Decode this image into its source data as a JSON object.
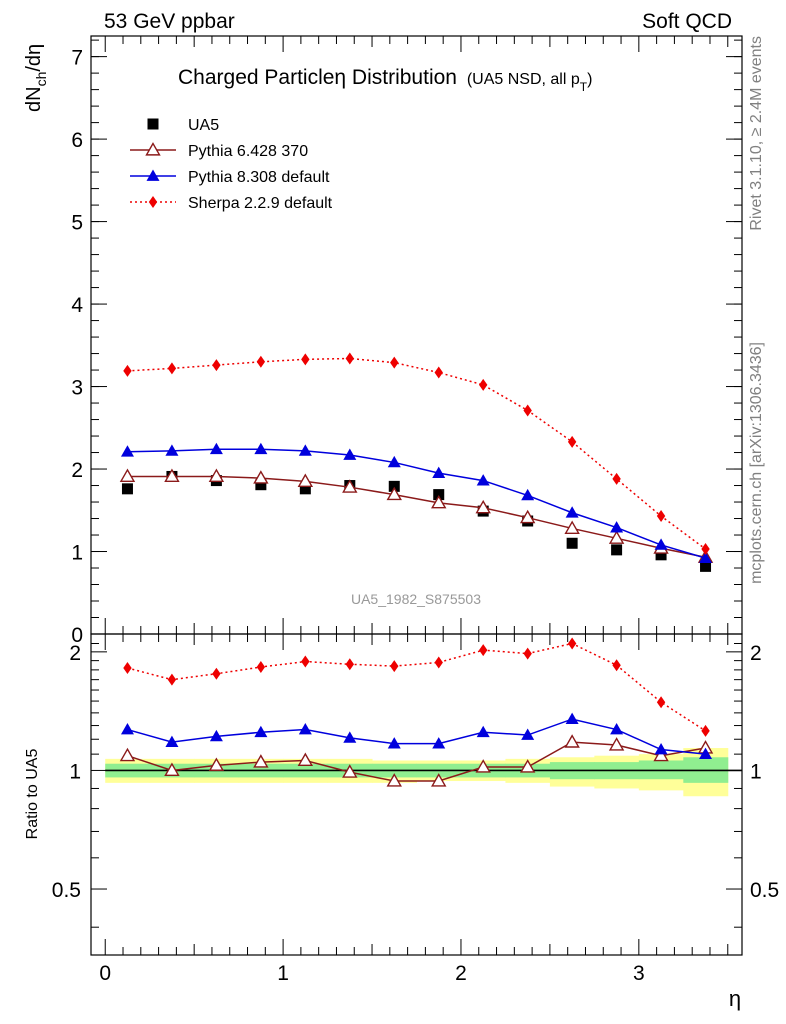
{
  "header": {
    "left": "53 GeV ppbar",
    "right": "Soft QCD"
  },
  "side_text": {
    "upper": "Rivet 3.1.10, ≥ 2.4M events",
    "lower": "mcplots.cern.ch [arXiv:1306.3436]"
  },
  "chart_data": [
    {
      "type": "scatter",
      "title": "Charged Particleη Distribution",
      "subtitle_main": "(UA5 NSD, all p",
      "subtitle_sub": "T",
      "subtitle_close": ")",
      "ylabel_main": "dN",
      "ylabel_sub": "ch",
      "ylabel_tail": "/dη",
      "watermark": "UA5_1982_S875503",
      "xlim": [
        -0.08,
        3.58
      ],
      "ylim": [
        0,
        7.25
      ],
      "yticks": [
        0,
        1,
        2,
        3,
        4,
        5,
        6,
        7
      ],
      "grid": false,
      "legend_position": "top-left",
      "legend": [
        {
          "label": "UA5",
          "marker": "square",
          "color": "#000000",
          "line": "none"
        },
        {
          "label": "Pythia 6.428 370",
          "marker": "triangle-open",
          "color": "#8b1a1a",
          "line": "solid"
        },
        {
          "label": "Pythia 8.308 default",
          "marker": "triangle",
          "color": "#0000dd",
          "line": "solid"
        },
        {
          "label": "Sherpa 2.2.9 default",
          "marker": "diamond",
          "color": "#ee0000",
          "line": "dotted"
        }
      ],
      "x": [
        0.125,
        0.375,
        0.625,
        0.875,
        1.125,
        1.375,
        1.625,
        1.875,
        2.125,
        2.375,
        2.625,
        2.875,
        3.125,
        3.375
      ],
      "series": [
        {
          "name": "UA5",
          "values": [
            1.76,
            1.91,
            1.86,
            1.81,
            1.76,
            1.8,
            1.79,
            1.69,
            1.49,
            1.37,
            1.1,
            1.02,
            0.96,
            0.82
          ]
        },
        {
          "name": "Pythia 6.428 370",
          "values": [
            1.91,
            1.91,
            1.91,
            1.89,
            1.85,
            1.78,
            1.69,
            1.59,
            1.53,
            1.41,
            1.28,
            1.16,
            1.04,
            0.93
          ]
        },
        {
          "name": "Pythia 8.308 default",
          "values": [
            2.21,
            2.22,
            2.24,
            2.24,
            2.22,
            2.17,
            2.08,
            1.95,
            1.86,
            1.68,
            1.47,
            1.29,
            1.08,
            0.92
          ]
        },
        {
          "name": "Sherpa 2.2.9 default",
          "values": [
            3.19,
            3.22,
            3.26,
            3.3,
            3.33,
            3.34,
            3.29,
            3.17,
            3.02,
            2.71,
            2.33,
            1.88,
            1.43,
            1.03
          ]
        }
      ]
    },
    {
      "type": "line",
      "ylabel": "Ratio to UA5",
      "xlabel": "η",
      "xlim": [
        -0.08,
        3.58
      ],
      "ylim": [
        0.34,
        2.22
      ],
      "xticks": [
        0,
        1,
        2,
        3
      ],
      "yticks": [
        0.5,
        1,
        2
      ],
      "grid": false,
      "x": [
        0.125,
        0.375,
        0.625,
        0.875,
        1.125,
        1.375,
        1.625,
        1.875,
        2.125,
        2.375,
        2.625,
        2.875,
        3.125,
        3.375
      ],
      "bin_edges": [
        0,
        0.25,
        0.5,
        0.75,
        1.0,
        1.25,
        1.5,
        1.75,
        2.0,
        2.25,
        2.5,
        2.75,
        3.0,
        3.25,
        3.5
      ],
      "band_stat": {
        "color": "#90ee90",
        "lo": [
          0.96,
          0.96,
          0.96,
          0.96,
          0.96,
          0.96,
          0.96,
          0.96,
          0.96,
          0.96,
          0.95,
          0.95,
          0.95,
          0.93
        ],
        "hi": [
          1.04,
          1.04,
          1.04,
          1.04,
          1.04,
          1.04,
          1.04,
          1.04,
          1.04,
          1.04,
          1.05,
          1.05,
          1.06,
          1.08
        ]
      },
      "band_total": {
        "color": "#ffff99",
        "lo": [
          0.93,
          0.93,
          0.93,
          0.93,
          0.93,
          0.93,
          0.93,
          0.94,
          0.94,
          0.93,
          0.91,
          0.9,
          0.89,
          0.86
        ],
        "hi": [
          1.07,
          1.07,
          1.07,
          1.07,
          1.07,
          1.07,
          1.06,
          1.06,
          1.06,
          1.07,
          1.08,
          1.09,
          1.1,
          1.14
        ]
      },
      "series": [
        {
          "name": "Pythia 6.428 370",
          "values": [
            1.09,
            1.0,
            1.03,
            1.05,
            1.06,
            0.99,
            0.94,
            0.94,
            1.02,
            1.02,
            1.18,
            1.16,
            1.09,
            1.14
          ]
        },
        {
          "name": "Pythia 8.308 default",
          "values": [
            1.27,
            1.18,
            1.22,
            1.25,
            1.27,
            1.21,
            1.17,
            1.17,
            1.25,
            1.23,
            1.35,
            1.27,
            1.13,
            1.1
          ]
        },
        {
          "name": "Sherpa 2.2.9 default",
          "values": [
            1.82,
            1.7,
            1.76,
            1.83,
            1.89,
            1.86,
            1.84,
            1.88,
            2.02,
            1.98,
            2.1,
            1.85,
            1.49,
            1.26
          ]
        }
      ]
    }
  ]
}
